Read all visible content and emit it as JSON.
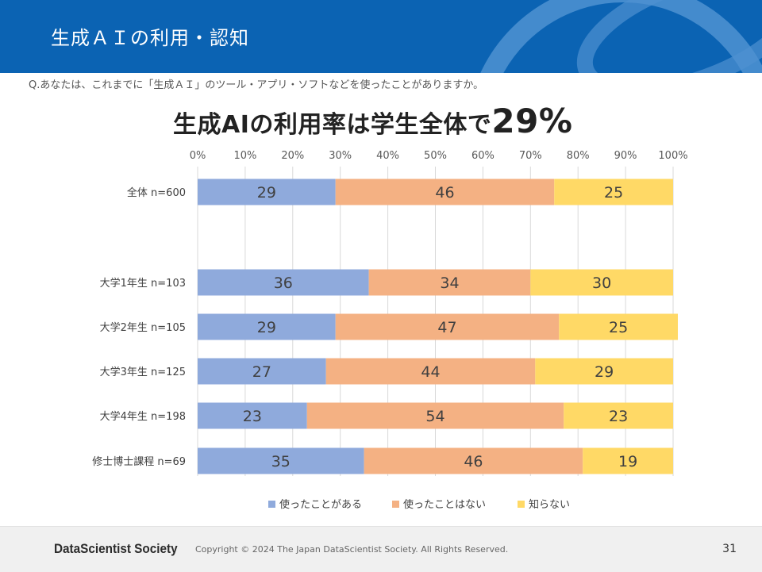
{
  "header": {
    "title": "生成ＡＩの利用・認知"
  },
  "question": "Q.あなたは、これまでに「生成ＡＩ」のツール・アプリ・ソフトなどを使ったことがありますか。",
  "headline": {
    "text": "生成AIの利用率は学生全体で",
    "number": "29%"
  },
  "chart_data": {
    "type": "bar",
    "orientation": "horizontal",
    "stacked": true,
    "percent_stacked": true,
    "title": "生成AIの利用率は学生全体で29%",
    "categories": [
      "全体 n=600",
      "大学1年生 n=103",
      "大学2年生 n=105",
      "大学3年生 n=125",
      "大学4年生 n=198",
      "修士博士課程 n=69"
    ],
    "xlim": [
      0,
      100
    ],
    "xticks": [
      0,
      10,
      20,
      30,
      40,
      50,
      60,
      70,
      80,
      90,
      100
    ],
    "tick_suffix": "%",
    "grid": true,
    "legend_position": "bottom",
    "series": [
      {
        "name": "使ったことがある",
        "color": "#8faadc",
        "values": [
          29,
          36,
          29,
          27,
          23,
          35
        ]
      },
      {
        "name": "使ったことはない",
        "color": "#f4b183",
        "values": [
          46,
          34,
          47,
          44,
          54,
          46
        ]
      },
      {
        "name": "知らない",
        "color": "#ffd966",
        "values": [
          25,
          30,
          25,
          29,
          23,
          19
        ]
      }
    ]
  },
  "footer": {
    "logo": "DataScientist Society",
    "copyright": "Copyright © 2024  The Japan DataScientist Society. All Rights Reserved.",
    "page": "31"
  }
}
